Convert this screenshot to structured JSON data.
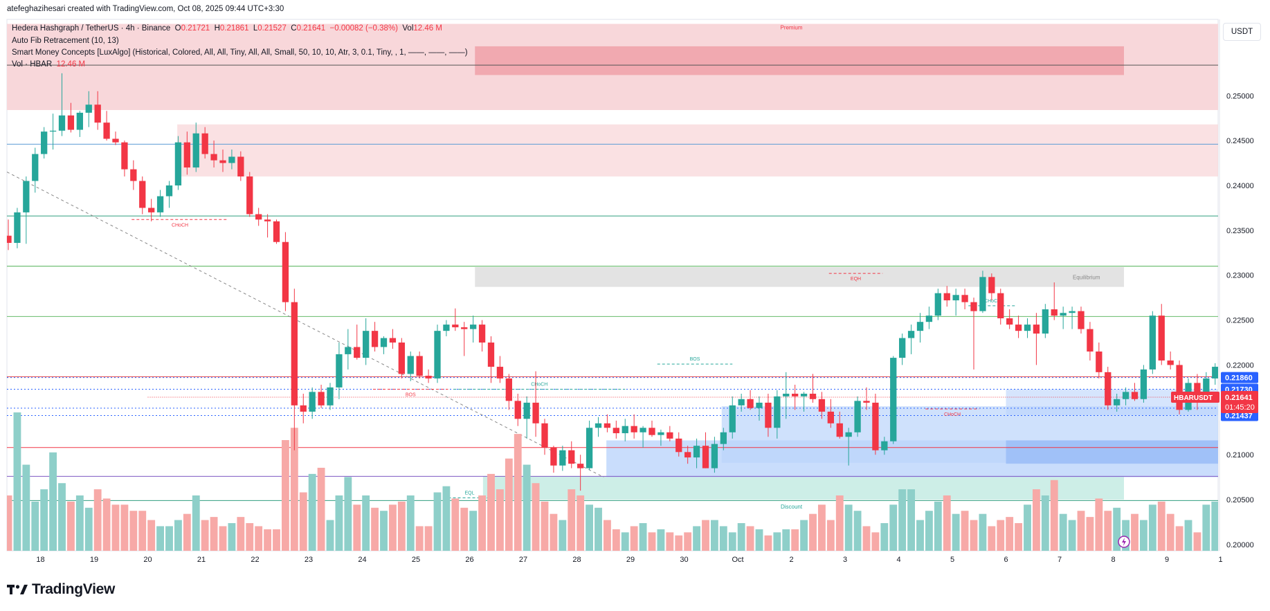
{
  "header": {
    "credit": "atefeghazihesari created with TradingView.com, Oct 08, 2025 09:44 UTC+3:30"
  },
  "legend": {
    "symbol": "Hedera Hashgraph / TetherUS · 4h · Binance",
    "o_label": "O",
    "o_value": "0.21721",
    "h_label": "H",
    "h_value": "0.21861",
    "l_label": "L",
    "l_value": "0.21527",
    "c_label": "C",
    "c_value": "0.21641",
    "change": "−0.00082 (−0.38%)",
    "vol_label": "Vol",
    "vol_value": "12.46 M",
    "indicator1": "Auto Fib Retracement (10, 13)",
    "indicator2": "Smart Money Concepts [LuxAlgo] (Historical, Colored, All, All, Tiny, All, All, Small, 50, 10, 10, Atr, 3, 0.1, Tiny, , 1, ——, ——, ——)",
    "indicator3_name": "Vol · HBAR",
    "indicator3_value": "12.46 M"
  },
  "currency_button": "USDT",
  "brand": "TradingView",
  "colors": {
    "up": "#26a69a",
    "down": "#f23645",
    "up_vol": "#8ecfc9",
    "down_vol": "#f7a9a7",
    "premium": "#f8d7da",
    "discount": "#cdeee7",
    "equilibrium": "#e0e0e0",
    "ob_blue": "#bbd4fb"
  },
  "chart_data": {
    "type": "candlestick",
    "symbol": "HBARUSDT",
    "interval": "4h",
    "ylim": [
      0.1993,
      0.2585
    ],
    "y_ticks": [
      "0.20000",
      "0.20500",
      "0.21000",
      "0.21500",
      "0.22000",
      "0.22500",
      "0.23000",
      "0.23500",
      "0.24000",
      "0.24500",
      "0.25000"
    ],
    "x_ticks": [
      {
        "label": "18",
        "day": 18
      },
      {
        "label": "19",
        "day": 19
      },
      {
        "label": "20",
        "day": 20
      },
      {
        "label": "21",
        "day": 21
      },
      {
        "label": "22",
        "day": 22
      },
      {
        "label": "23",
        "day": 23
      },
      {
        "label": "24",
        "day": 24
      },
      {
        "label": "25",
        "day": 25
      },
      {
        "label": "26",
        "day": 26
      },
      {
        "label": "27",
        "day": 27
      },
      {
        "label": "28",
        "day": 28
      },
      {
        "label": "29",
        "day": 29
      },
      {
        "label": "30",
        "day": 30
      },
      {
        "label": "Oct",
        "day": 31
      },
      {
        "label": "2",
        "day": 32
      },
      {
        "label": "3",
        "day": 33
      },
      {
        "label": "4",
        "day": 34
      },
      {
        "label": "5",
        "day": 35
      },
      {
        "label": "6",
        "day": 36
      },
      {
        "label": "7",
        "day": 37
      },
      {
        "label": "8",
        "day": 38
      },
      {
        "label": "9",
        "day": 39
      },
      {
        "label": "1",
        "day": 40
      }
    ],
    "candles_per_day": 6,
    "first_candle_day": 17.4,
    "ohlc": [
      [
        0.2344,
        0.2362,
        0.2328,
        0.2336
      ],
      [
        0.2336,
        0.2375,
        0.233,
        0.237
      ],
      [
        0.237,
        0.241,
        0.2335,
        0.2405
      ],
      [
        0.2405,
        0.2442,
        0.2392,
        0.2435
      ],
      [
        0.2435,
        0.2465,
        0.243,
        0.246
      ],
      [
        0.246,
        0.248,
        0.244,
        0.2461
      ],
      [
        0.2461,
        0.2525,
        0.2455,
        0.2478
      ],
      [
        0.2478,
        0.2492,
        0.2459,
        0.2462
      ],
      [
        0.2462,
        0.2483,
        0.2454,
        0.2481
      ],
      [
        0.2481,
        0.2505,
        0.2465,
        0.249
      ],
      [
        0.249,
        0.2505,
        0.2462,
        0.247
      ],
      [
        0.247,
        0.2483,
        0.245,
        0.2452
      ],
      [
        0.2452,
        0.246,
        0.2445,
        0.2448
      ],
      [
        0.2448,
        0.245,
        0.241,
        0.2418
      ],
      [
        0.2418,
        0.2428,
        0.2395,
        0.2405
      ],
      [
        0.2405,
        0.241,
        0.2368,
        0.2375
      ],
      [
        0.2375,
        0.2385,
        0.236,
        0.237
      ],
      [
        0.237,
        0.2395,
        0.2365,
        0.2388
      ],
      [
        0.2388,
        0.2405,
        0.2375,
        0.24
      ],
      [
        0.24,
        0.2455,
        0.2395,
        0.2448
      ],
      [
        0.2448,
        0.246,
        0.2412,
        0.242
      ],
      [
        0.242,
        0.247,
        0.2415,
        0.2458
      ],
      [
        0.2458,
        0.2465,
        0.243,
        0.2435
      ],
      [
        0.2435,
        0.245,
        0.242,
        0.2428
      ],
      [
        0.2428,
        0.244,
        0.2415,
        0.2425
      ],
      [
        0.2425,
        0.244,
        0.2418,
        0.2432
      ],
      [
        0.2432,
        0.2438,
        0.2405,
        0.241
      ],
      [
        0.241,
        0.2415,
        0.2365,
        0.2368
      ],
      [
        0.2368,
        0.2375,
        0.2355,
        0.2362
      ],
      [
        0.2362,
        0.2368,
        0.2342,
        0.236
      ],
      [
        0.236,
        0.2362,
        0.2335,
        0.2337
      ],
      [
        0.2337,
        0.2348,
        0.226,
        0.227
      ],
      [
        0.227,
        0.2285,
        0.2105,
        0.2155
      ],
      [
        0.2155,
        0.2168,
        0.2135,
        0.2148
      ],
      [
        0.2148,
        0.2175,
        0.214,
        0.217
      ],
      [
        0.217,
        0.2178,
        0.2152,
        0.2155
      ],
      [
        0.2155,
        0.218,
        0.215,
        0.2175
      ],
      [
        0.2175,
        0.2225,
        0.2162,
        0.2212
      ],
      [
        0.2212,
        0.224,
        0.2195,
        0.222
      ],
      [
        0.222,
        0.2245,
        0.2206,
        0.2208
      ],
      [
        0.2208,
        0.2252,
        0.22,
        0.2238
      ],
      [
        0.2238,
        0.2248,
        0.2215,
        0.222
      ],
      [
        0.222,
        0.2232,
        0.2212,
        0.223
      ],
      [
        0.223,
        0.224,
        0.2218,
        0.2225
      ],
      [
        0.2225,
        0.223,
        0.2185,
        0.219
      ],
      [
        0.219,
        0.2215,
        0.2182,
        0.221
      ],
      [
        0.221,
        0.2215,
        0.2185,
        0.2188
      ],
      [
        0.2188,
        0.2195,
        0.218,
        0.2185
      ],
      [
        0.2185,
        0.2245,
        0.218,
        0.2238
      ],
      [
        0.2238,
        0.225,
        0.2232,
        0.2245
      ],
      [
        0.2245,
        0.2263,
        0.2238,
        0.2242
      ],
      [
        0.2242,
        0.2248,
        0.221,
        0.224
      ],
      [
        0.224,
        0.2255,
        0.2225,
        0.2245
      ],
      [
        0.2245,
        0.225,
        0.2215,
        0.2225
      ],
      [
        0.2225,
        0.2232,
        0.218,
        0.2198
      ],
      [
        0.2198,
        0.221,
        0.218,
        0.2185
      ],
      [
        0.2185,
        0.219,
        0.215,
        0.216
      ],
      [
        0.216,
        0.2168,
        0.2132,
        0.214
      ],
      [
        0.214,
        0.2165,
        0.2118,
        0.2158
      ],
      [
        0.2158,
        0.2193,
        0.212,
        0.2135
      ],
      [
        0.2135,
        0.214,
        0.21,
        0.2108
      ],
      [
        0.2108,
        0.211,
        0.208,
        0.2088
      ],
      [
        0.2088,
        0.211,
        0.2082,
        0.2105
      ],
      [
        0.2105,
        0.2115,
        0.2085,
        0.209
      ],
      [
        0.209,
        0.21,
        0.206,
        0.2085
      ],
      [
        0.2085,
        0.2138,
        0.2083,
        0.213
      ],
      [
        0.213,
        0.2142,
        0.212,
        0.2135
      ],
      [
        0.2135,
        0.2145,
        0.2125,
        0.213
      ],
      [
        0.213,
        0.2138,
        0.2118,
        0.2124
      ],
      [
        0.2124,
        0.214,
        0.2115,
        0.2132
      ],
      [
        0.2132,
        0.2145,
        0.2118,
        0.2125
      ],
      [
        0.2125,
        0.2132,
        0.2108,
        0.213
      ],
      [
        0.213,
        0.2138,
        0.212,
        0.2122
      ],
      [
        0.2122,
        0.2128,
        0.211,
        0.2125
      ],
      [
        0.2125,
        0.2132,
        0.2115,
        0.2118
      ],
      [
        0.2118,
        0.2125,
        0.2098,
        0.2103
      ],
      [
        0.2103,
        0.211,
        0.209,
        0.2097
      ],
      [
        0.2097,
        0.2118,
        0.2085,
        0.211
      ],
      [
        0.211,
        0.2125,
        0.2085,
        0.2085
      ],
      [
        0.2085,
        0.212,
        0.208,
        0.2112
      ],
      [
        0.2112,
        0.213,
        0.2105,
        0.2125
      ],
      [
        0.2125,
        0.2165,
        0.2118,
        0.2155
      ],
      [
        0.2155,
        0.2168,
        0.2148,
        0.2162
      ],
      [
        0.2162,
        0.2172,
        0.215,
        0.2152
      ],
      [
        0.2152,
        0.2165,
        0.2138,
        0.2158
      ],
      [
        0.2158,
        0.2168,
        0.212,
        0.213
      ],
      [
        0.213,
        0.2172,
        0.2118,
        0.2165
      ],
      [
        0.2165,
        0.2192,
        0.214,
        0.2168
      ],
      [
        0.2168,
        0.2178,
        0.215,
        0.2165
      ],
      [
        0.2165,
        0.217,
        0.2148,
        0.2168
      ],
      [
        0.2168,
        0.219,
        0.2158,
        0.2162
      ],
      [
        0.2162,
        0.217,
        0.214,
        0.2148
      ],
      [
        0.2148,
        0.2162,
        0.213,
        0.2135
      ],
      [
        0.2135,
        0.2148,
        0.2118,
        0.212
      ],
      [
        0.212,
        0.213,
        0.2088,
        0.2125
      ],
      [
        0.2125,
        0.2165,
        0.212,
        0.216
      ],
      [
        0.216,
        0.2175,
        0.215,
        0.2158
      ],
      [
        0.2158,
        0.2168,
        0.21,
        0.2105
      ],
      [
        0.2105,
        0.212,
        0.21,
        0.2115
      ],
      [
        0.2115,
        0.221,
        0.2112,
        0.2208
      ],
      [
        0.2208,
        0.2235,
        0.22,
        0.223
      ],
      [
        0.223,
        0.2245,
        0.2212,
        0.2238
      ],
      [
        0.2238,
        0.2258,
        0.2225,
        0.2248
      ],
      [
        0.2248,
        0.2265,
        0.224,
        0.2255
      ],
      [
        0.2255,
        0.2285,
        0.225,
        0.228
      ],
      [
        0.228,
        0.2288,
        0.2265,
        0.2272
      ],
      [
        0.2272,
        0.2285,
        0.2255,
        0.2278
      ],
      [
        0.2278,
        0.2285,
        0.2262,
        0.227
      ],
      [
        0.227,
        0.2275,
        0.2195,
        0.226
      ],
      [
        0.226,
        0.2305,
        0.2258,
        0.2298
      ],
      [
        0.2298,
        0.2302,
        0.2272,
        0.228
      ],
      [
        0.228,
        0.2285,
        0.2245,
        0.2252
      ],
      [
        0.2252,
        0.2262,
        0.224,
        0.2245
      ],
      [
        0.2245,
        0.2255,
        0.223,
        0.2238
      ],
      [
        0.2238,
        0.2252,
        0.223,
        0.2245
      ],
      [
        0.2245,
        0.2258,
        0.22,
        0.2235
      ],
      [
        0.2235,
        0.2268,
        0.223,
        0.2262
      ],
      [
        0.2262,
        0.2292,
        0.225,
        0.2255
      ],
      [
        0.2255,
        0.2265,
        0.224,
        0.2258
      ],
      [
        0.2258,
        0.2265,
        0.224,
        0.226
      ],
      [
        0.226,
        0.2265,
        0.2235,
        0.224
      ],
      [
        0.224,
        0.2248,
        0.2205,
        0.2215
      ],
      [
        0.2215,
        0.2225,
        0.2185,
        0.2192
      ],
      [
        0.2192,
        0.2198,
        0.215,
        0.2155
      ],
      [
        0.2155,
        0.2168,
        0.2148,
        0.2162
      ],
      [
        0.2162,
        0.2175,
        0.2155,
        0.217
      ],
      [
        0.217,
        0.218,
        0.216,
        0.2162
      ],
      [
        0.2162,
        0.22,
        0.2158,
        0.2195
      ],
      [
        0.2195,
        0.226,
        0.219,
        0.2255
      ],
      [
        0.2255,
        0.2268,
        0.22,
        0.2205
      ],
      [
        0.2205,
        0.2215,
        0.2195,
        0.22
      ],
      [
        0.22,
        0.2205,
        0.2145,
        0.215
      ],
      [
        0.215,
        0.2185,
        0.2148,
        0.218
      ],
      [
        0.218,
        0.219,
        0.215,
        0.217
      ],
      [
        0.217,
        0.2192,
        0.2165,
        0.2185
      ],
      [
        0.2185,
        0.2202,
        0.2178,
        0.2198
      ],
      [
        0.2198,
        0.2242,
        0.2195,
        0.2235
      ],
      [
        0.2235,
        0.2305,
        0.223,
        0.2302
      ],
      [
        0.2302,
        0.2338,
        0.2275,
        0.2298
      ],
      [
        0.2298,
        0.23,
        0.229,
        0.2295
      ],
      [
        0.2295,
        0.233,
        0.2288,
        0.2298
      ],
      [
        0.2298,
        0.2308,
        0.2275,
        0.2282
      ],
      [
        0.2282,
        0.2286,
        0.2252,
        0.2255
      ],
      [
        0.2255,
        0.226,
        0.2238,
        0.2255
      ],
      [
        0.2255,
        0.2282,
        0.217,
        0.2175
      ],
      [
        0.2175,
        0.2195,
        0.2165,
        0.2176
      ],
      [
        0.2176,
        0.2216,
        0.2172,
        0.2182
      ],
      [
        0.2182,
        0.2188,
        0.217,
        0.2176
      ],
      [
        0.2176,
        0.2214,
        0.2165,
        0.2172
      ],
      [
        0.2172,
        0.2186,
        0.2153,
        0.2164
      ]
    ],
    "volume_units": "M",
    "volume": [
      18,
      45,
      28,
      16,
      20,
      32,
      22,
      16,
      18,
      14,
      20,
      17,
      15,
      15,
      13,
      13,
      10,
      8,
      8,
      10,
      12,
      18,
      10,
      11,
      8,
      9,
      11,
      9,
      8,
      7,
      7,
      36,
      40,
      19,
      25,
      27,
      10,
      18,
      24,
      15,
      18,
      14,
      13,
      15,
      16,
      18,
      8,
      8,
      19,
      21,
      17,
      14,
      13,
      18,
      25,
      20,
      30,
      38,
      28,
      22,
      16,
      12,
      10,
      20,
      18,
      15,
      14,
      10,
      7,
      6,
      8,
      9,
      6,
      7,
      6,
      5,
      6,
      8,
      10,
      10,
      8,
      6,
      9,
      8,
      7,
      5,
      6,
      7,
      7,
      10,
      12,
      15,
      10,
      18,
      15,
      13,
      8,
      6,
      9,
      15,
      20,
      20,
      10,
      13,
      16,
      18,
      12,
      13,
      10,
      12,
      8,
      10,
      11,
      9,
      15,
      20,
      18,
      23,
      12,
      10,
      13,
      11,
      17,
      13,
      14,
      10,
      12,
      10,
      15,
      16,
      12,
      8,
      10,
      6,
      15,
      16,
      11,
      10,
      12,
      15,
      9,
      8,
      7,
      8,
      12,
      40,
      28,
      10,
      12,
      11,
      8,
      8,
      10,
      28,
      12,
      12
    ]
  },
  "price_axis": {
    "last_price_label": "HBARUSDT",
    "last_price": "0.21641",
    "countdown": "01:45:20",
    "level_labels": [
      {
        "text": "0.21860",
        "value": 0.2186,
        "color": "#2962ff"
      },
      {
        "text": "0.21730",
        "value": 0.2173,
        "color": "#2962ff"
      },
      {
        "text": "0.21519",
        "value": 0.21519,
        "color": "#2962ff"
      },
      {
        "text": "0.21437",
        "value": 0.21437,
        "color": "#2962ff"
      }
    ]
  },
  "annotations": {
    "premium": "Premium",
    "equilibrium": "Equilibrium",
    "discount": "Discount",
    "choch": "CHoCH",
    "bos": "BOS",
    "eqh": "EQH",
    "eql": "EQL"
  }
}
